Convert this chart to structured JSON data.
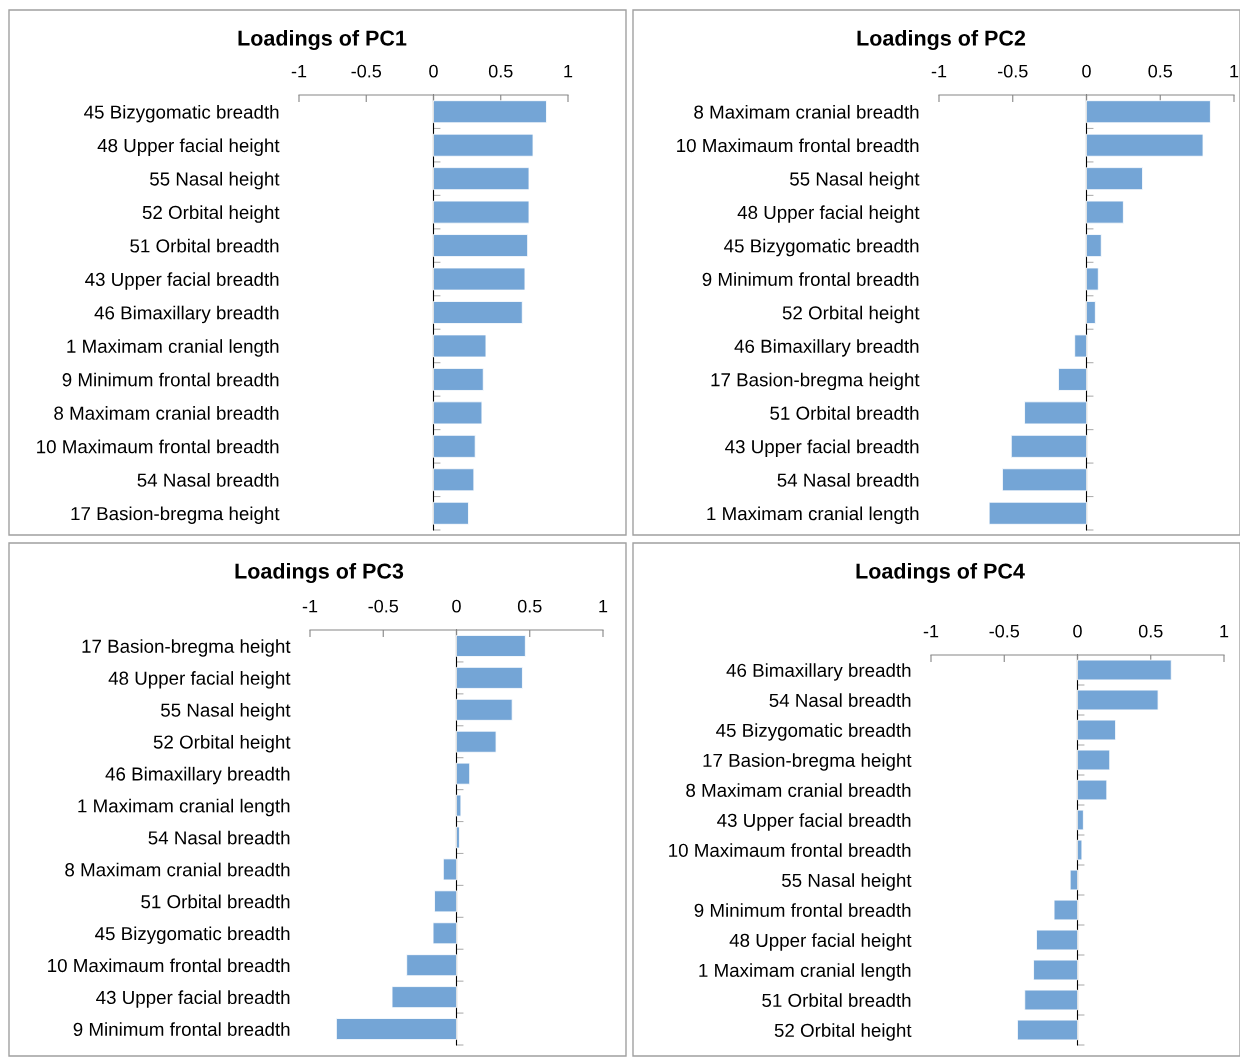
{
  "chart_data": [
    {
      "type": "bar",
      "orientation": "horizontal",
      "title": "Loadings of PC1",
      "color": "#74a5d6",
      "xlim": [
        -1,
        1
      ],
      "xticks": [
        -1,
        -0.5,
        0,
        0.5,
        1
      ],
      "categories": [
        "45 Bizygomatic breadth",
        "48 Upper facial height",
        "55 Nasal height",
        "52 Orbital height",
        "51 Orbital breadth",
        "43 Upper facial breadth",
        "46 Bimaxillary breadth",
        "1 Maximam cranial length",
        "9 Minimum frontal breadth",
        "8 Maximam cranial breadth",
        "10 Maximaum frontal breadth",
        "54 Nasal breadth",
        "17 Basion-bregma height"
      ],
      "values": [
        0.84,
        0.74,
        0.71,
        0.71,
        0.7,
        0.68,
        0.66,
        0.39,
        0.37,
        0.36,
        0.31,
        0.3,
        0.26
      ]
    },
    {
      "type": "bar",
      "orientation": "horizontal",
      "title": "Loadings of PC2",
      "color": "#74a5d6",
      "xlim": [
        -1,
        1
      ],
      "xticks": [
        -1,
        -0.5,
        0,
        0.5,
        1
      ],
      "categories": [
        "8 Maximam cranial breadth",
        "10 Maximaum frontal breadth",
        "55 Nasal height",
        "48 Upper facial height",
        "45 Bizygomatic breadth",
        "9 Minimum frontal breadth",
        "52 Orbital height",
        "46 Bimaxillary breadth",
        "17 Basion-bregma height",
        "51 Orbital breadth",
        "43 Upper facial breadth",
        "54 Nasal breadth",
        "1 Maximam cranial length"
      ],
      "values": [
        0.84,
        0.79,
        0.38,
        0.25,
        0.1,
        0.08,
        0.06,
        -0.08,
        -0.19,
        -0.42,
        -0.51,
        -0.57,
        -0.66
      ]
    },
    {
      "type": "bar",
      "orientation": "horizontal",
      "title": "Loadings of PC3",
      "color": "#74a5d6",
      "xlim": [
        -1,
        1
      ],
      "xticks": [
        -1,
        -0.5,
        0,
        0.5,
        1
      ],
      "categories": [
        "17 Basion-bregma height",
        "48 Upper facial height",
        "55 Nasal height",
        "52 Orbital height",
        "46 Bimaxillary breadth",
        "1 Maximam cranial length",
        "54 Nasal breadth",
        "8 Maximam cranial breadth",
        "51 Orbital breadth",
        "45 Bizygomatic breadth",
        "10 Maximaum frontal breadth",
        "43 Upper facial breadth",
        "9 Minimum frontal breadth"
      ],
      "values": [
        0.47,
        0.45,
        0.38,
        0.27,
        0.09,
        0.03,
        0.02,
        -0.09,
        -0.15,
        -0.16,
        -0.34,
        -0.44,
        -0.82
      ]
    },
    {
      "type": "bar",
      "orientation": "horizontal",
      "title": "Loadings of PC4",
      "color": "#74a5d6",
      "xlim": [
        -1,
        1
      ],
      "xticks": [
        -1,
        -0.5,
        0,
        0.5,
        1
      ],
      "categories": [
        "46 Bimaxillary breadth",
        "54 Nasal breadth",
        "45 Bizygomatic breadth",
        "17 Basion-bregma height",
        "8 Maximam cranial breadth",
        "43 Upper facial breadth",
        "10 Maximaum frontal breadth",
        "55 Nasal height",
        "9 Minimum frontal breadth",
        "48 Upper facial height",
        "1 Maximam cranial length",
        "51 Orbital breadth",
        "52 Orbital height"
      ],
      "values": [
        0.64,
        0.55,
        0.26,
        0.22,
        0.2,
        0.04,
        0.03,
        -0.05,
        -0.16,
        -0.28,
        -0.3,
        -0.36,
        -0.41
      ]
    }
  ]
}
